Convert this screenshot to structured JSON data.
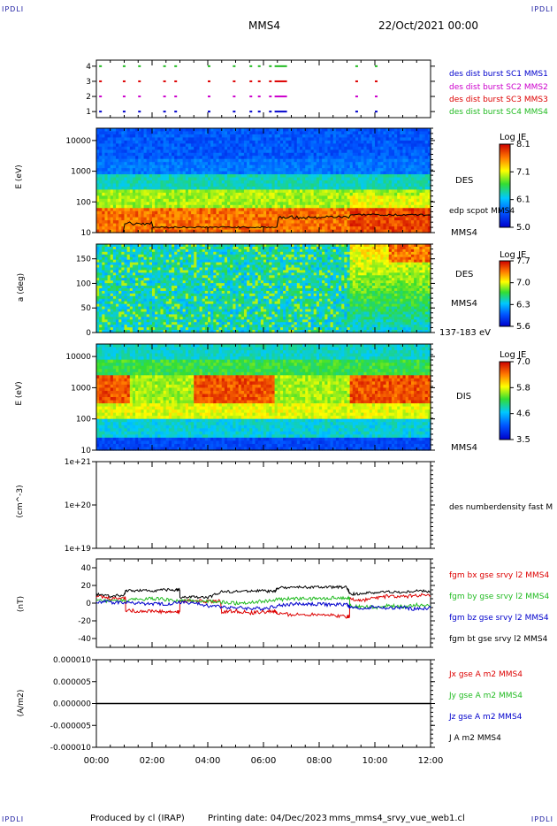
{
  "corner_tl": "IPDLI",
  "corner_tr": "IPDLI",
  "corner_bl": "IPDLI",
  "corner_br": "IPDLI",
  "header": {
    "spacecraft": "MMS4",
    "datetime": "22/Oct/2021 00:00"
  },
  "footer": {
    "produced_by": "Produced by cl (IRAP)",
    "printing_date": "Printing date: 04/Dec/2023",
    "filename": "mms_mms4_srvy_vue_web1.cl"
  },
  "time_axis": {
    "labels": [
      "00:00",
      "02:00",
      "04:00",
      "06:00",
      "08:00",
      "10:00",
      "12:00"
    ],
    "range_hours": [
      0,
      12
    ]
  },
  "colors": {
    "red": "#dd0000",
    "green": "#22bb22",
    "blue": "#0000cc",
    "magenta": "#cc00cc",
    "black": "#000000"
  },
  "chart_data": [
    {
      "type": "scatter",
      "panel": "burst-availability",
      "yticks": [
        "1",
        "2",
        "3",
        "4"
      ],
      "ylim": [
        0.6,
        4.4
      ],
      "legend": [
        {
          "label": "des dist burst SC1 MMS1",
          "color": "#0000cc"
        },
        {
          "label": "des dist burst SC2 MMS2",
          "color": "#cc00cc"
        },
        {
          "label": "des dist burst SC3 MMS3",
          "color": "#dd0000"
        },
        {
          "label": "des dist burst SC4 MMS4",
          "color": "#22bb22"
        }
      ],
      "burst_times_h": [
        0.1,
        0.95,
        1.5,
        2.4,
        2.8,
        4.0,
        4.9,
        5.5,
        5.8,
        6.2,
        6.4,
        9.3,
        10.0
      ]
    },
    {
      "type": "heatmap",
      "panel": "des-energy",
      "ylabel": "E (eV)",
      "yticks": [
        "10",
        "100",
        "1000",
        "10000"
      ],
      "ylim_log": [
        1,
        4.4
      ],
      "right_labels": [
        "DES",
        "edp scpot MMS4",
        "MMS4"
      ],
      "colorbar": {
        "title": "Log JE",
        "ticks": [
          "8.1",
          "7.1",
          "6.1",
          "5.0"
        ]
      }
    },
    {
      "type": "heatmap",
      "panel": "des-pitch",
      "ylabel": "a (deg)",
      "yticks": [
        "0",
        "50",
        "100",
        "150"
      ],
      "ylim": [
        0,
        180
      ],
      "right_labels": [
        "DES",
        "MMS4",
        "137-183 eV"
      ],
      "colorbar": {
        "title": "Log JE",
        "ticks": [
          "7.7",
          "7.0",
          "6.3",
          "5.6"
        ]
      }
    },
    {
      "type": "heatmap",
      "panel": "dis-energy",
      "ylabel": "E (eV)",
      "yticks": [
        "10",
        "100",
        "1000",
        "10000"
      ],
      "ylim_log": [
        1,
        4.4
      ],
      "right_labels": [
        "DIS",
        "MMS4"
      ],
      "colorbar": {
        "title": "Log JE",
        "ticks": [
          "7.0",
          "5.8",
          "4.6",
          "3.5"
        ]
      }
    },
    {
      "type": "line",
      "panel": "density",
      "ylabel": "(cm^-3)",
      "yticks": [
        "1e+19",
        "1e+20",
        "1e+21"
      ],
      "legend": [
        {
          "label": "des numberdensity fast M",
          "color": "#000000"
        }
      ],
      "series": []
    },
    {
      "type": "line",
      "panel": "magnetic-field",
      "ylabel": "(nT)",
      "yticks": [
        "-40",
        "-20",
        "0",
        "20",
        "40"
      ],
      "ylim": [
        -50,
        50
      ],
      "legend": [
        {
          "label": "fgm bx gse srvy l2 MMS4",
          "color": "#dd0000"
        },
        {
          "label": "fgm by gse srvy l2 MMS4",
          "color": "#22bb22"
        },
        {
          "label": "fgm bz gse srvy l2 MMS4",
          "color": "#0000cc"
        },
        {
          "label": "fgm bt gse srvy l2 MMS4",
          "color": "#000000"
        }
      ],
      "series": [
        {
          "name": "fgm bx gse srvy l2 MMS4",
          "x": [
            0,
            0.5,
            1.0,
            1.05,
            1.5,
            2.0,
            2.5,
            2.9,
            3.0,
            3.5,
            4.0,
            4.5,
            5.0,
            5.5,
            6.0,
            6.4,
            6.5,
            7.0,
            7.5,
            8.0,
            8.5,
            9.0,
            9.1,
            9.5,
            10.0,
            10.5,
            11.0,
            11.5,
            12.0
          ],
          "y": [
            8,
            5,
            6,
            -8,
            -9,
            -9,
            -10,
            -10,
            2,
            3,
            2,
            -10,
            -9,
            -11,
            -10,
            -9,
            -12,
            -13,
            -13,
            -12,
            -14,
            -15,
            5,
            3,
            6,
            8,
            7,
            9,
            8
          ]
        },
        {
          "name": "fgm by gse srvy l2 MMS4",
          "x": [
            0,
            0.5,
            1.0,
            1.5,
            2.0,
            2.5,
            3.0,
            3.5,
            4.0,
            4.5,
            5.0,
            5.5,
            6.0,
            6.5,
            7.0,
            7.5,
            8.0,
            8.5,
            9.0,
            9.1,
            9.5,
            10.0,
            10.5,
            11.0,
            11.5,
            12.0
          ],
          "y": [
            3,
            2,
            3,
            4,
            5,
            4,
            2,
            3,
            2,
            1,
            0,
            1,
            2,
            4,
            5,
            5,
            5,
            6,
            6,
            -3,
            -4,
            -5,
            -3,
            -4,
            -2,
            -3
          ]
        },
        {
          "name": "fgm bz gse srvy l2 MMS4",
          "x": [
            0,
            0.5,
            1.0,
            1.5,
            2.0,
            2.5,
            3.0,
            3.5,
            4.0,
            4.5,
            5.0,
            5.5,
            6.0,
            6.5,
            7.0,
            7.5,
            8.0,
            8.5,
            9.0,
            9.1,
            9.5,
            10.0,
            10.5,
            11.0,
            11.5,
            12.0
          ],
          "y": [
            2,
            1,
            1,
            0,
            -1,
            -1,
            1,
            0,
            -3,
            -4,
            -5,
            -6,
            -6,
            -3,
            -1,
            -1,
            -1,
            -2,
            -1,
            -5,
            -6,
            -4,
            -6,
            -5,
            -7,
            -5
          ]
        },
        {
          "name": "fgm bt gse srvy l2 MMS4",
          "x": [
            0,
            0.5,
            1.0,
            1.05,
            1.5,
            2.0,
            2.5,
            2.9,
            3.0,
            3.5,
            4.0,
            4.5,
            5.0,
            5.5,
            6.0,
            6.4,
            6.5,
            7.0,
            7.5,
            8.0,
            8.5,
            9.0,
            9.1,
            9.5,
            10.0,
            10.5,
            11.0,
            11.5,
            12.0
          ],
          "y": [
            10,
            8,
            9,
            14,
            14,
            14,
            15,
            15,
            6,
            7,
            6,
            13,
            13,
            14,
            14,
            13,
            17,
            18,
            18,
            18,
            18,
            18,
            10,
            11,
            12,
            13,
            12,
            14,
            13
          ]
        }
      ]
    },
    {
      "type": "line",
      "panel": "current-density",
      "ylabel": "(A/m2)",
      "yticks": [
        "-0.000010",
        "-0.000005",
        "0.000000",
        "0.000005",
        "0.000010"
      ],
      "ylim": [
        -1e-05,
        1e-05
      ],
      "legend": [
        {
          "label": "Jx gse A m2 MMS4",
          "color": "#dd0000"
        },
        {
          "label": "Jy gse A m2 MMS4",
          "color": "#22bb22"
        },
        {
          "label": "Jz gse A m2 MMS4",
          "color": "#0000cc"
        },
        {
          "label": "J A m2 MMS4",
          "color": "#000000"
        }
      ],
      "series": [
        {
          "name": "J A m2 MMS4",
          "x": [
            0,
            12
          ],
          "y": [
            0,
            0
          ]
        }
      ]
    }
  ]
}
